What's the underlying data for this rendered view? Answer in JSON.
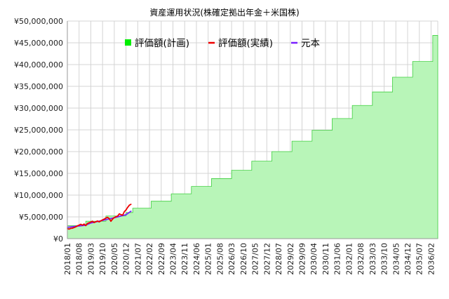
{
  "chart_data": {
    "type": "area",
    "title": "資産運用状況(株確定拠出年金＋米国株)",
    "xlabel": "",
    "ylabel": "",
    "ylim": [
      0,
      50000000
    ],
    "y_ticks": [
      "¥0",
      "¥5,000,000",
      "¥10,000,000",
      "¥15,000,000",
      "¥20,000,000",
      "¥25,000,000",
      "¥30,000,000",
      "¥35,000,000",
      "¥40,000,000",
      "¥45,000,000",
      "¥50,000,000"
    ],
    "x_ticks": [
      "2018/01",
      "2018/08",
      "2019/03",
      "2019/10",
      "2020/05",
      "2020/12",
      "2021/07",
      "2022/02",
      "2022/09",
      "2023/04",
      "2023/11",
      "2024/06",
      "2025/01",
      "2025/08",
      "2026/03",
      "2026/10",
      "2027/05",
      "2027/12",
      "2028/07",
      "2029/02",
      "2029/09",
      "2030/04",
      "2030/11",
      "2031/06",
      "2032/01",
      "2032/08",
      "2033/03",
      "2033/10",
      "2034/05",
      "2034/12",
      "2035/07",
      "2036/02"
    ],
    "grid": true,
    "legend_position": "top",
    "series": [
      {
        "name": "評価額(計画)",
        "color": "#00ee00",
        "fill": "#b8f5b8",
        "style": "step-area",
        "steps": [
          {
            "start": "2018/01",
            "value": 3000000
          },
          {
            "start": "2018/12",
            "value": 4000000
          },
          {
            "start": "2019/12",
            "value": 5200000
          },
          {
            "start": "2020/12",
            "value": 6000000
          },
          {
            "start": "2021/04",
            "value": 7000000
          },
          {
            "start": "2022/03",
            "value": 8600000
          },
          {
            "start": "2023/03",
            "value": 10300000
          },
          {
            "start": "2024/03",
            "value": 12000000
          },
          {
            "start": "2025/03",
            "value": 13800000
          },
          {
            "start": "2026/03",
            "value": 15700000
          },
          {
            "start": "2027/03",
            "value": 17800000
          },
          {
            "start": "2028/03",
            "value": 20000000
          },
          {
            "start": "2029/03",
            "value": 22400000
          },
          {
            "start": "2030/03",
            "value": 24900000
          },
          {
            "start": "2031/03",
            "value": 27600000
          },
          {
            "start": "2032/03",
            "value": 30600000
          },
          {
            "start": "2033/03",
            "value": 33700000
          },
          {
            "start": "2034/03",
            "value": 37100000
          },
          {
            "start": "2035/03",
            "value": 40700000
          },
          {
            "start": "2036/03",
            "value": 46700000
          }
        ],
        "end": "2036/06"
      },
      {
        "name": "評価額(実績)",
        "color": "#ee0000",
        "style": "line",
        "points": [
          [
            "2018/01",
            2300000
          ],
          [
            "2018/02",
            2200000
          ],
          [
            "2018/03",
            2350000
          ],
          [
            "2018/04",
            2400000
          ],
          [
            "2018/05",
            2550000
          ],
          [
            "2018/06",
            2700000
          ],
          [
            "2018/07",
            2950000
          ],
          [
            "2018/08",
            3100000
          ],
          [
            "2018/09",
            3300000
          ],
          [
            "2018/10",
            3100000
          ],
          [
            "2018/11",
            3350000
          ],
          [
            "2018/12",
            3000000
          ],
          [
            "2019/01",
            3500000
          ],
          [
            "2019/02",
            3650000
          ],
          [
            "2019/03",
            3800000
          ],
          [
            "2019/04",
            4000000
          ],
          [
            "2019/05",
            3700000
          ],
          [
            "2019/06",
            3900000
          ],
          [
            "2019/07",
            4050000
          ],
          [
            "2019/08",
            3850000
          ],
          [
            "2019/09",
            4100000
          ],
          [
            "2019/10",
            4300000
          ],
          [
            "2019/11",
            4500000
          ],
          [
            "2019/12",
            4750000
          ],
          [
            "2020/01",
            4900000
          ],
          [
            "2020/02",
            4600000
          ],
          [
            "2020/03",
            4000000
          ],
          [
            "2020/04",
            4500000
          ],
          [
            "2020/05",
            4850000
          ],
          [
            "2020/06",
            5050000
          ],
          [
            "2020/07",
            5200000
          ],
          [
            "2020/08",
            5700000
          ],
          [
            "2020/09",
            5500000
          ],
          [
            "2020/10",
            5400000
          ],
          [
            "2020/11",
            6200000
          ],
          [
            "2020/12",
            6600000
          ],
          [
            "2021/01",
            7200000
          ],
          [
            "2021/02",
            7700000
          ],
          [
            "2021/03",
            7900000
          ]
        ]
      },
      {
        "name": "元本",
        "color": "#7a1fff",
        "style": "line",
        "points": [
          [
            "2018/01",
            2600000
          ],
          [
            "2018/12",
            3100000
          ],
          [
            "2019/03",
            3600000
          ],
          [
            "2019/10",
            4200000
          ],
          [
            "2020/05",
            4800000
          ],
          [
            "2020/12",
            5500000
          ],
          [
            "2021/03",
            6300000
          ]
        ]
      }
    ]
  }
}
